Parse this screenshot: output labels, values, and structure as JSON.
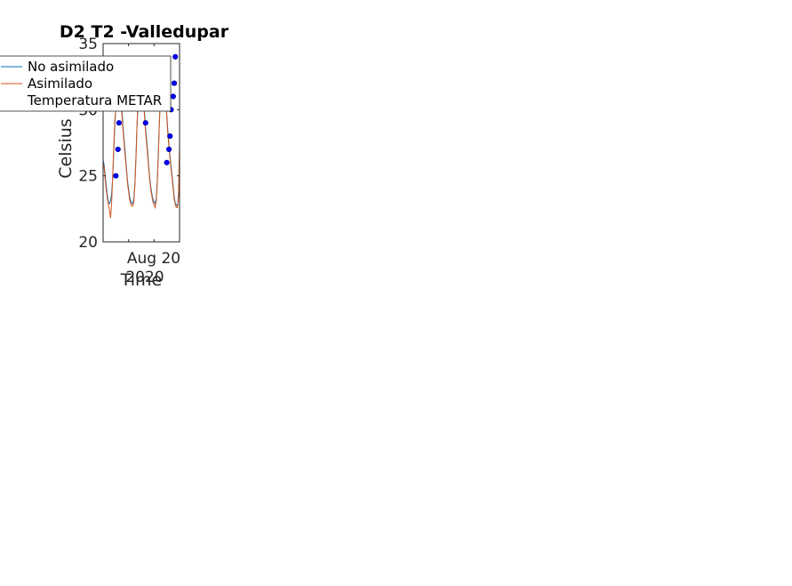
{
  "chart_data": {
    "type": "line",
    "title": "D2 T2  -Valledupar",
    "xlabel": "Time",
    "ylabel": "Celsius",
    "x_tick_label": "Aug 20",
    "x_secondary_label": "2020",
    "ylim": [
      20,
      35
    ],
    "yticks": [
      20,
      25,
      30,
      35
    ],
    "xlim_hours": [
      0,
      72
    ],
    "x_tick_hours": [
      24,
      48
    ],
    "x_tick_label_hour": 48,
    "legend_location": "top-left",
    "series": [
      {
        "name": "No asimilado",
        "color": "#0072bd",
        "style": "line",
        "x_hours": [
          0,
          1,
          2,
          3,
          4,
          5,
          6,
          7,
          8,
          9,
          10,
          11,
          12,
          13,
          14,
          15,
          16,
          17,
          18,
          19,
          20,
          21,
          22,
          23,
          24,
          25,
          26,
          27,
          28,
          29,
          30,
          31,
          32,
          33,
          34,
          35,
          36,
          37,
          38,
          39,
          40,
          41,
          42,
          43,
          44,
          45,
          46,
          47,
          48,
          49,
          50,
          51,
          52,
          53,
          54,
          55,
          56,
          57,
          58,
          59,
          60,
          61,
          62,
          63,
          64,
          65,
          66,
          67,
          68,
          69,
          70,
          71,
          72
        ],
        "values": [
          26.2,
          25.8,
          25.0,
          24.2,
          23.5,
          23.0,
          22.9,
          23.1,
          23.6,
          24.8,
          26.8,
          28.8,
          30.2,
          31.5,
          32.6,
          32.9,
          32.2,
          31.0,
          29.6,
          28.5,
          27.5,
          26.6,
          25.6,
          24.6,
          24.0,
          23.4,
          23.1,
          22.9,
          22.9,
          23.3,
          24.5,
          26.6,
          28.9,
          30.6,
          31.9,
          32.8,
          33.2,
          32.4,
          31.1,
          29.8,
          28.6,
          27.7,
          26.8,
          25.7,
          24.8,
          24.1,
          23.6,
          23.2,
          23.0,
          22.9,
          23.3,
          24.6,
          26.7,
          29.1,
          31.0,
          32.3,
          33.2,
          33.9,
          32.6,
          31.0,
          29.6,
          28.4,
          27.4,
          26.5,
          25.7,
          25.0,
          24.2,
          23.4,
          22.9,
          22.8,
          22.7,
          23.6,
          25.4
        ]
      },
      {
        "name": "Asimilado",
        "color": "#d95319",
        "style": "line",
        "x_hours": [
          0,
          1,
          2,
          3,
          4,
          5,
          6,
          7,
          8,
          9,
          10,
          11,
          12,
          13,
          14,
          15,
          16,
          17,
          18,
          19,
          20,
          21,
          22,
          23,
          24,
          25,
          26,
          27,
          28,
          29,
          30,
          31,
          32,
          33,
          34,
          35,
          36,
          37,
          38,
          39,
          40,
          41,
          42,
          43,
          44,
          45,
          46,
          47,
          48,
          49,
          50,
          51,
          52,
          53,
          54,
          55,
          56,
          57,
          58,
          59,
          60,
          61,
          62,
          63,
          64,
          65,
          66,
          67,
          68,
          69,
          70,
          71,
          72
        ],
        "values": [
          26.0,
          25.6,
          24.7,
          23.9,
          23.3,
          22.8,
          22.4,
          21.8,
          22.9,
          24.9,
          27.0,
          29.2,
          30.0,
          31.8,
          32.7,
          32.6,
          31.7,
          30.5,
          29.2,
          28.2,
          27.2,
          26.3,
          25.4,
          24.4,
          23.8,
          23.2,
          22.9,
          22.7,
          22.7,
          23.1,
          24.3,
          26.4,
          29.0,
          30.8,
          32.0,
          32.6,
          33.0,
          32.2,
          30.8,
          29.5,
          28.3,
          27.4,
          26.5,
          25.5,
          24.6,
          23.9,
          23.4,
          23.0,
          22.8,
          22.6,
          23.1,
          24.4,
          26.5,
          29.0,
          30.8,
          32.1,
          33.0,
          33.6,
          32.3,
          30.8,
          29.4,
          28.1,
          27.2,
          26.3,
          25.5,
          24.8,
          24.0,
          23.2,
          22.8,
          22.6,
          22.6,
          23.4,
          27.4
        ]
      },
      {
        "name": "Temperatura METAR",
        "color": "#0000ff",
        "style": "markers",
        "x_hours": [
          12,
          14,
          15,
          40,
          60,
          62,
          63,
          64,
          66,
          67,
          68
        ],
        "values": [
          25.0,
          27.0,
          29.0,
          29.0,
          26.0,
          27.0,
          28.0,
          30.0,
          31.0,
          32.0,
          34.0
        ]
      }
    ]
  }
}
